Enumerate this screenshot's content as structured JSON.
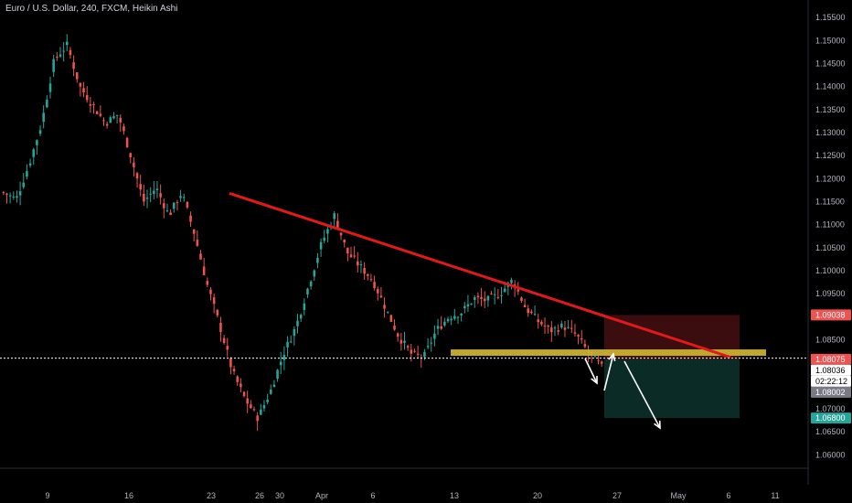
{
  "symbol_title": "Euro / U.S. Dollar, 240, FXCM, Heikin Ashi",
  "colors": {
    "background": "#000000",
    "up": "#26a69a",
    "down": "#ef5350",
    "trendline": "#e01919",
    "zone": "#c9b032",
    "sl_box": "#3b0d0f",
    "tp_box": "#0b2b27",
    "axis_text": "#b2b5be"
  },
  "chart_data": {
    "type": "candlestick",
    "title": "Euro / U.S. Dollar, 240, FXCM, Heikin Ashi",
    "y_axis": {
      "side": "right",
      "ticks": [
        "1.15500",
        "1.15000",
        "1.14500",
        "1.14000",
        "1.13500",
        "1.13000",
        "1.12500",
        "1.12000",
        "1.11500",
        "1.11000",
        "1.10500",
        "1.10000",
        "1.09500",
        "1.09000",
        "1.08500",
        "1.08000",
        "1.07500",
        "1.07000",
        "1.06500",
        "1.06000"
      ],
      "range": [
        1.0555,
        1.158
      ]
    },
    "x_axis": {
      "ticks": [
        "9",
        "16",
        "23",
        "26",
        "30",
        "Apr",
        "6",
        "13",
        "20",
        "27",
        "May",
        "6",
        "11"
      ]
    },
    "price_path_closes": [
      1.117,
      1.1155,
      1.123,
      1.132,
      1.146,
      1.149,
      1.14,
      1.136,
      1.132,
      1.134,
      1.125,
      1.115,
      1.118,
      1.112,
      1.117,
      1.108,
      1.097,
      1.088,
      1.078,
      1.072,
      1.068,
      1.074,
      1.082,
      1.088,
      1.097,
      1.106,
      1.112,
      1.104,
      1.101,
      1.098,
      1.092,
      1.086,
      1.082,
      1.081,
      1.087,
      1.09,
      1.091,
      1.094,
      1.0935,
      1.095,
      1.098,
      1.092,
      1.089,
      1.087,
      1.088,
      1.086,
      1.082,
      1.079
    ],
    "annotations": {
      "resistance_trendline": {
        "from_price": 1.1168,
        "to_price": 1.0812
      },
      "support_zone": {
        "low": 1.0815,
        "high": 1.0829
      },
      "stop_loss_box": {
        "low": 1.08075,
        "high": 1.09038
      },
      "take_profit_box": {
        "low": 1.068,
        "high": 1.08075
      }
    },
    "price_tags": [
      {
        "label": "1.09038",
        "style": "red"
      },
      {
        "label": "1.08075",
        "style": "red"
      },
      {
        "label": "1.08036",
        "style": "white"
      },
      {
        "label": "02:22:12",
        "style": "white"
      },
      {
        "label": "1.08002",
        "style": "gray"
      },
      {
        "label": "1.06800",
        "style": "green"
      }
    ],
    "current_price_line": 1.081
  }
}
